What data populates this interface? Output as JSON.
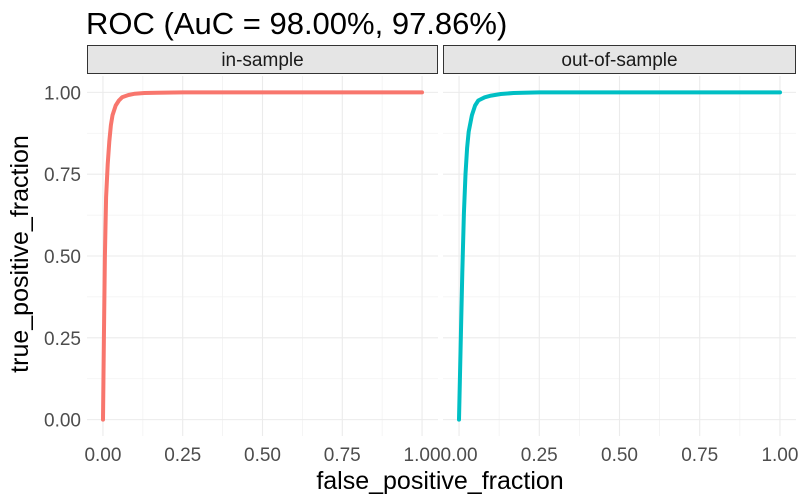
{
  "chart_data": {
    "type": "line",
    "title": "ROC (AuC = 98.00%, 97.86%)",
    "xlabel": "false_positive_fraction",
    "ylabel": "true_positive_fraction",
    "xlim": [
      0,
      1
    ],
    "ylim": [
      0,
      1
    ],
    "x_ticks": [
      "0.00",
      "0.25",
      "0.50",
      "0.75",
      "1.00"
    ],
    "y_ticks": [
      "0.00",
      "0.25",
      "0.50",
      "0.75",
      "1.00"
    ],
    "grid": true,
    "facets": [
      {
        "strip": "in-sample",
        "color": "#F8766D",
        "x": [
          0,
          0.003,
          0.006,
          0.01,
          0.015,
          0.02,
          0.025,
          0.03,
          0.04,
          0.05,
          0.06,
          0.08,
          0.1,
          0.13,
          0.17,
          0.25,
          0.5,
          0.75,
          1.0
        ],
        "y": [
          0,
          0.25,
          0.5,
          0.68,
          0.78,
          0.85,
          0.9,
          0.93,
          0.96,
          0.975,
          0.985,
          0.992,
          0.996,
          0.998,
          0.999,
          1.0,
          1.0,
          1.0,
          1.0
        ]
      },
      {
        "strip": "out-of-sample",
        "color": "#00BFC4",
        "x": [
          0,
          0.005,
          0.01,
          0.015,
          0.02,
          0.025,
          0.03,
          0.04,
          0.05,
          0.06,
          0.08,
          0.1,
          0.13,
          0.17,
          0.2,
          0.25,
          0.5,
          0.75,
          1.0
        ],
        "y": [
          0,
          0.22,
          0.45,
          0.63,
          0.75,
          0.83,
          0.88,
          0.93,
          0.96,
          0.975,
          0.985,
          0.99,
          0.995,
          0.998,
          0.999,
          1.0,
          1.0,
          1.0,
          1.0
        ]
      }
    ]
  }
}
